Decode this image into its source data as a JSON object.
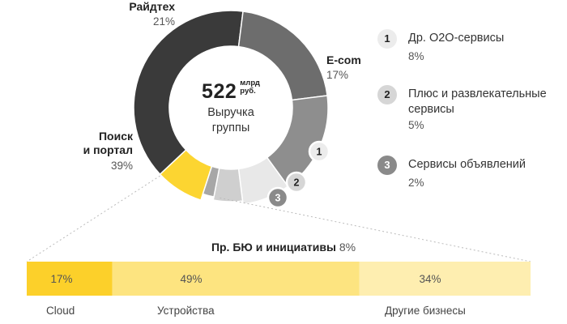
{
  "center": {
    "value": "522",
    "unit_line1": "млрд",
    "unit_line2": "руб.",
    "caption_line1": "Выручка",
    "caption_line2": "группы"
  },
  "chart_data": [
    {
      "type": "pie",
      "variant": "donut",
      "segments": [
        {
          "label": "Поиск и портал",
          "label_line1": "Поиск",
          "label_line2": "и портал",
          "value": 39,
          "value_label": "39%",
          "color": "#3a3a3a"
        },
        {
          "label": "Райдтех",
          "value": 21,
          "value_label": "21%",
          "color": "#6d6d6d"
        },
        {
          "label": "E-com",
          "value": 17,
          "value_label": "17%",
          "color": "#8e8e8e"
        },
        {
          "label": "Др. O2O-сервисы",
          "badge": "1",
          "value": 8,
          "value_label": "8%",
          "color": "#e8e8e8"
        },
        {
          "label": "Плюс и развлекательные сервисы",
          "badge": "2",
          "value": 5,
          "value_label": "5%",
          "color": "#cfcfcf"
        },
        {
          "label": "Сервисы объявлений",
          "badge": "3",
          "value": 2,
          "value_label": "2%",
          "color": "#a7a7a7"
        },
        {
          "label": "Пр. БЮ и инициативы",
          "value": 8,
          "value_label": "8%",
          "color": "#fcd531"
        }
      ]
    },
    {
      "type": "bar",
      "orientation": "horizontal-stacked",
      "title": "Пр. БЮ и инициативы",
      "title_value": "8%",
      "categories": [
        "Cloud",
        "Устройства",
        "Другие бизнесы"
      ],
      "values": [
        17,
        49,
        34
      ],
      "value_labels": [
        "17%",
        "49%",
        "34%"
      ],
      "colors": [
        "#fcd02a",
        "#fde480",
        "#feeeb0"
      ]
    }
  ],
  "legend": [
    {
      "badge": "1",
      "name_line1": "Др. O2O-сервисы",
      "name_line2": "",
      "value": "8%",
      "badge_bg": "#ececec",
      "badge_fg": "#222222"
    },
    {
      "badge": "2",
      "name_line1": "Плюс и развлекательные",
      "name_line2": "сервисы",
      "value": "5%",
      "badge_bg": "#d6d6d6",
      "badge_fg": "#222222"
    },
    {
      "badge": "3",
      "name_line1": "Сервисы объявлений",
      "name_line2": "",
      "value": "2%",
      "badge_bg": "#8a8a8a",
      "badge_fg": "#ffffff"
    }
  ]
}
